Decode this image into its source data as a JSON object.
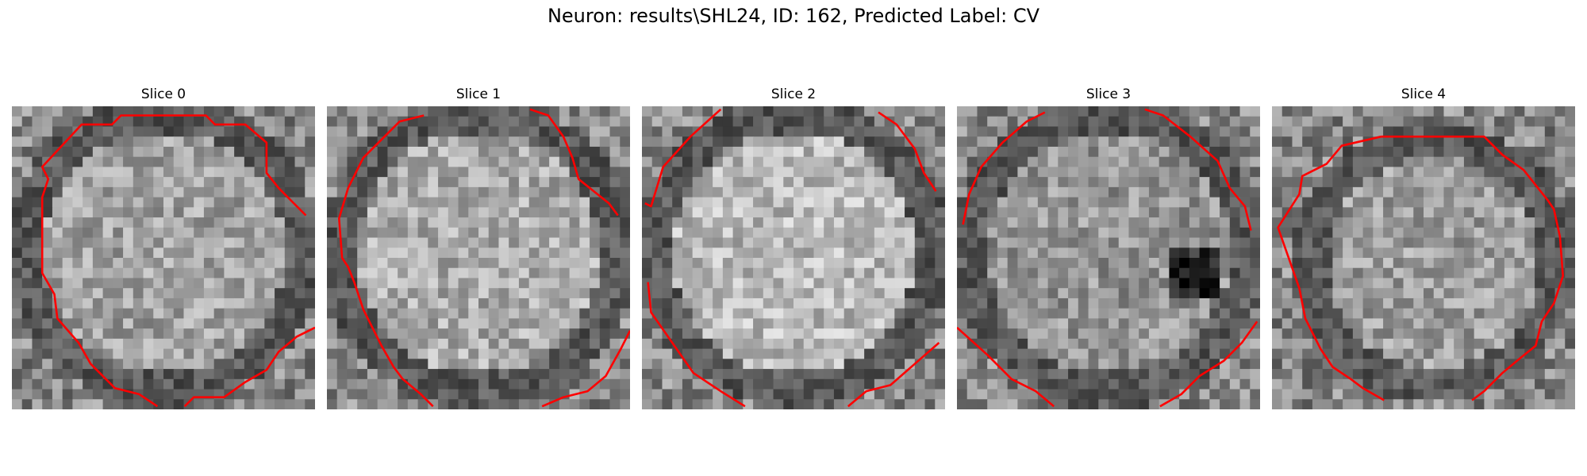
{
  "figure": {
    "title": "Neuron: results\\SHL24, ID: 162, Predicted Label: CV"
  },
  "panels": [
    {
      "title": "Slice 0"
    },
    {
      "title": "Slice 1"
    },
    {
      "title": "Slice 2"
    },
    {
      "title": "Slice 3"
    },
    {
      "title": "Slice 4"
    }
  ],
  "colors": {
    "contour": "#ff0000",
    "colormap": "gray"
  }
}
